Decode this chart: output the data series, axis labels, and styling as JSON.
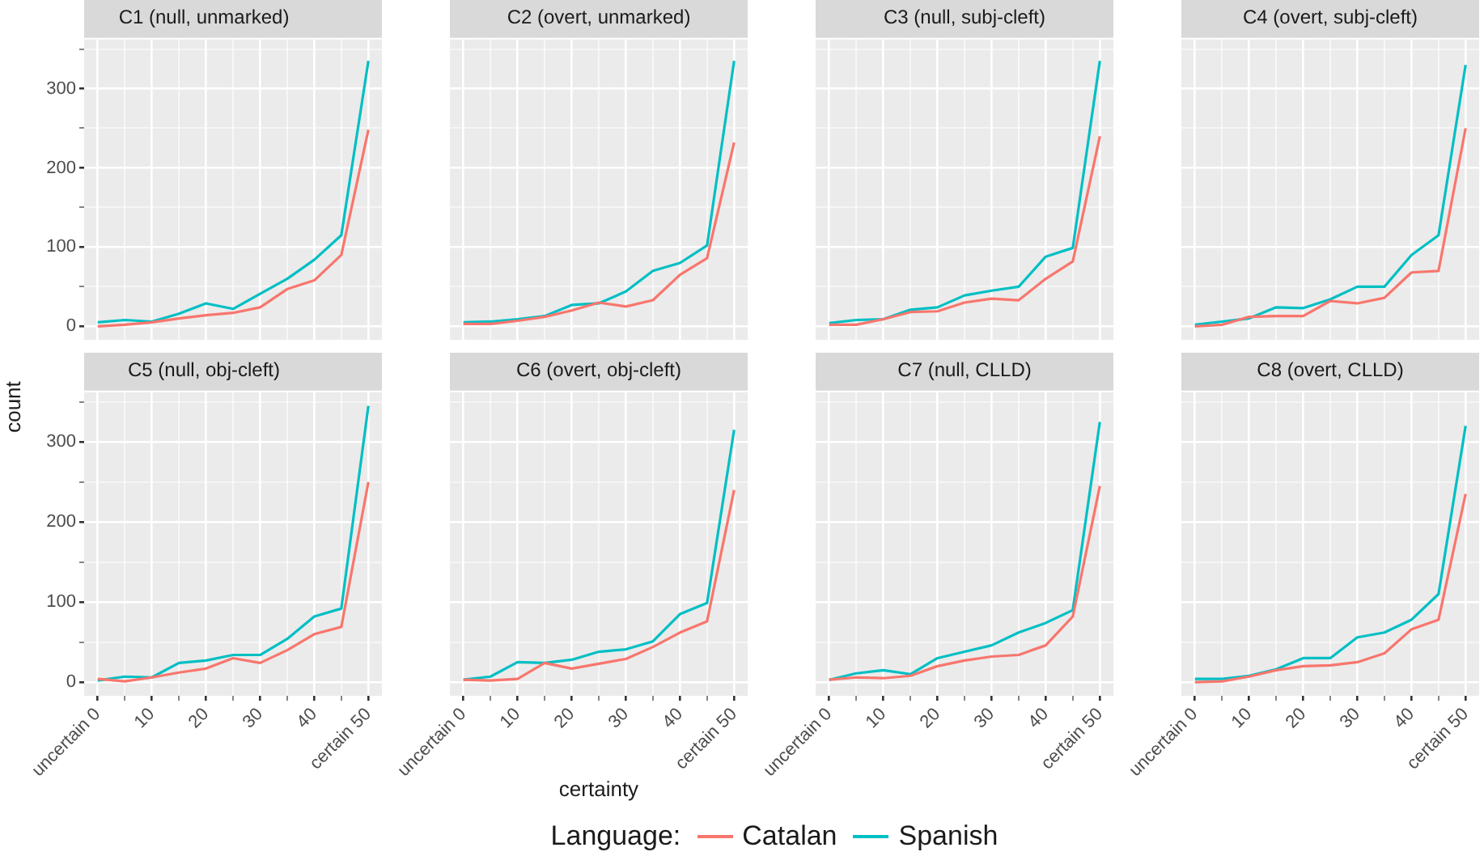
{
  "chart_data": [
    {
      "type": "line",
      "title": "C1 (null, unmarked)",
      "ylabel": "count",
      "legend_title": "Language:",
      "legend": "bottom",
      "tick_labels": "y",
      "grid": true,
      "x": [
        0,
        5,
        10,
        15,
        20,
        25,
        30,
        35,
        40,
        45,
        50
      ],
      "xlim": [
        -2.5,
        52.5
      ],
      "xticks": [
        0,
        {
          "value": 5,
          "label": null
        },
        10,
        {
          "value": 15,
          "label": null
        },
        20,
        {
          "value": 25,
          "label": null
        },
        30,
        {
          "value": 35,
          "label": null
        },
        40,
        {
          "value": 45,
          "label": null
        },
        50
      ],
      "ylim": [
        -17,
        362
      ],
      "yticks": [
        0,
        {
          "value": 50,
          "label": null
        },
        100,
        {
          "value": 150,
          "label": null
        },
        200,
        {
          "value": 250,
          "label": null
        },
        300,
        {
          "value": 350,
          "label": null
        }
      ],
      "series": [
        {
          "name": "Catalan",
          "color": "#f8766d",
          "values": [
            0,
            2,
            5,
            10,
            14,
            17,
            24,
            47,
            58,
            90,
            248
          ]
        },
        {
          "name": "Spanish",
          "color": "#00bfc4",
          "values": [
            5,
            8,
            6,
            16,
            29,
            22,
            41,
            60,
            84,
            115,
            335
          ]
        }
      ]
    },
    {
      "type": "line",
      "title": "C2 (overt, unmarked)",
      "tick_labels": false,
      "grid": true,
      "x": [
        0,
        5,
        10,
        15,
        20,
        25,
        30,
        35,
        40,
        45,
        50
      ],
      "xlim": [
        -2.5,
        52.5
      ],
      "xticks": [
        0,
        {
          "value": 5,
          "label": null
        },
        10,
        {
          "value": 15,
          "label": null
        },
        20,
        {
          "value": 25,
          "label": null
        },
        30,
        {
          "value": 35,
          "label": null
        },
        40,
        {
          "value": 45,
          "label": null
        },
        50
      ],
      "ylim": [
        -17,
        362
      ],
      "yticks": [
        0,
        {
          "value": 50,
          "label": null
        },
        100,
        {
          "value": 150,
          "label": null
        },
        200,
        {
          "value": 250,
          "label": null
        },
        300,
        {
          "value": 350,
          "label": null
        }
      ],
      "series": [
        {
          "color": "#f8766d",
          "values": [
            3,
            3,
            7,
            12,
            20,
            30,
            25,
            33,
            65,
            86,
            232
          ]
        },
        {
          "color": "#00bfc4",
          "values": [
            5,
            6,
            9,
            13,
            27,
            29,
            44,
            70,
            80,
            102,
            335
          ]
        }
      ]
    },
    {
      "type": "line",
      "title": "C3 (null, subj-cleft)",
      "tick_labels": false,
      "grid": true,
      "x": [
        0,
        5,
        10,
        15,
        20,
        25,
        30,
        35,
        40,
        45,
        50
      ],
      "xlim": [
        -2.5,
        52.5
      ],
      "xticks": [
        0,
        {
          "value": 5,
          "label": null
        },
        10,
        {
          "value": 15,
          "label": null
        },
        20,
        {
          "value": 25,
          "label": null
        },
        30,
        {
          "value": 35,
          "label": null
        },
        40,
        {
          "value": 45,
          "label": null
        },
        50
      ],
      "ylim": [
        -17,
        362
      ],
      "yticks": [
        0,
        {
          "value": 50,
          "label": null
        },
        100,
        {
          "value": 150,
          "label": null
        },
        200,
        {
          "value": 250,
          "label": null
        },
        300,
        {
          "value": 350,
          "label": null
        }
      ],
      "series": [
        {
          "color": "#f8766d",
          "values": [
            2,
            2,
            9,
            18,
            19,
            30,
            35,
            33,
            60,
            82,
            240
          ]
        },
        {
          "color": "#00bfc4",
          "values": [
            4,
            8,
            9,
            21,
            24,
            39,
            45,
            50,
            88,
            99,
            335
          ]
        }
      ]
    },
    {
      "type": "line",
      "title": "C4 (overt, subj-cleft)",
      "tick_labels": false,
      "grid": true,
      "x": [
        0,
        5,
        10,
        15,
        20,
        25,
        30,
        35,
        40,
        45,
        50
      ],
      "xlim": [
        -2.5,
        52.5
      ],
      "xticks": [
        0,
        {
          "value": 5,
          "label": null
        },
        10,
        {
          "value": 15,
          "label": null
        },
        20,
        {
          "value": 25,
          "label": null
        },
        30,
        {
          "value": 35,
          "label": null
        },
        40,
        {
          "value": 45,
          "label": null
        },
        50
      ],
      "ylim": [
        -17,
        362
      ],
      "yticks": [
        0,
        {
          "value": 50,
          "label": null
        },
        100,
        {
          "value": 150,
          "label": null
        },
        200,
        {
          "value": 250,
          "label": null
        },
        300,
        {
          "value": 350,
          "label": null
        }
      ],
      "series": [
        {
          "color": "#f8766d",
          "values": [
            0,
            2,
            12,
            13,
            13,
            32,
            29,
            36,
            68,
            70,
            250
          ]
        },
        {
          "color": "#00bfc4",
          "values": [
            2,
            6,
            10,
            24,
            23,
            34,
            50,
            50,
            90,
            115,
            330
          ]
        }
      ]
    },
    {
      "type": "line",
      "title": "C5 (null, obj-cleft)",
      "grid": true,
      "x": [
        0,
        5,
        10,
        15,
        20,
        25,
        30,
        35,
        40,
        45,
        50
      ],
      "xlim": [
        -2.5,
        52.5
      ],
      "xticks": [
        {
          "value": 0,
          "label": "uncertain 0"
        },
        {
          "value": 5,
          "label": null
        },
        10,
        {
          "value": 15,
          "label": null
        },
        20,
        {
          "value": 25,
          "label": null
        },
        30,
        {
          "value": 35,
          "label": null
        },
        40,
        {
          "value": 45,
          "label": null
        },
        {
          "value": 50,
          "label": "certain 50"
        }
      ],
      "ylim": [
        -17,
        362
      ],
      "yticks": [
        0,
        {
          "value": 50,
          "label": null
        },
        100,
        {
          "value": 150,
          "label": null
        },
        200,
        {
          "value": 250,
          "label": null
        },
        300,
        {
          "value": 350,
          "label": null
        }
      ],
      "series": [
        {
          "color": "#f8766d",
          "values": [
            4,
            1,
            6,
            12,
            17,
            30,
            24,
            40,
            60,
            69,
            250
          ]
        },
        {
          "color": "#00bfc4",
          "values": [
            2,
            7,
            6,
            24,
            27,
            34,
            34,
            54,
            82,
            92,
            345
          ]
        }
      ]
    },
    {
      "type": "line",
      "title": "C6 (overt, obj-cleft)",
      "xlabel": "certainty",
      "tick_labels": "x",
      "grid": true,
      "x": [
        0,
        5,
        10,
        15,
        20,
        25,
        30,
        35,
        40,
        45,
        50
      ],
      "xlim": [
        -2.5,
        52.5
      ],
      "xticks": [
        {
          "value": 0,
          "label": "uncertain 0"
        },
        {
          "value": 5,
          "label": null
        },
        10,
        {
          "value": 15,
          "label": null
        },
        20,
        {
          "value": 25,
          "label": null
        },
        30,
        {
          "value": 35,
          "label": null
        },
        40,
        {
          "value": 45,
          "label": null
        },
        {
          "value": 50,
          "label": "certain 50"
        }
      ],
      "ylim": [
        -17,
        362
      ],
      "yticks": [
        0,
        {
          "value": 50,
          "label": null
        },
        100,
        {
          "value": 150,
          "label": null
        },
        200,
        {
          "value": 250,
          "label": null
        },
        300,
        {
          "value": 350,
          "label": null
        }
      ],
      "series": [
        {
          "color": "#f8766d",
          "values": [
            3,
            2,
            4,
            24,
            17,
            23,
            29,
            44,
            62,
            76,
            240
          ]
        },
        {
          "color": "#00bfc4",
          "values": [
            3,
            7,
            25,
            24,
            28,
            38,
            41,
            51,
            85,
            99,
            315
          ]
        }
      ]
    },
    {
      "type": "line",
      "title": "C7 (null, CLLD)",
      "tick_labels": "x",
      "grid": true,
      "x": [
        0,
        5,
        10,
        15,
        20,
        25,
        30,
        35,
        40,
        45,
        50
      ],
      "xlim": [
        -2.5,
        52.5
      ],
      "xticks": [
        {
          "value": 0,
          "label": "uncertain 0"
        },
        {
          "value": 5,
          "label": null
        },
        10,
        {
          "value": 15,
          "label": null
        },
        20,
        {
          "value": 25,
          "label": null
        },
        30,
        {
          "value": 35,
          "label": null
        },
        40,
        {
          "value": 45,
          "label": null
        },
        {
          "value": 50,
          "label": "certain 50"
        }
      ],
      "ylim": [
        -17,
        362
      ],
      "yticks": [
        0,
        {
          "value": 50,
          "label": null
        },
        100,
        {
          "value": 150,
          "label": null
        },
        200,
        {
          "value": 250,
          "label": null
        },
        300,
        {
          "value": 350,
          "label": null
        }
      ],
      "series": [
        {
          "color": "#f8766d",
          "values": [
            3,
            6,
            5,
            8,
            20,
            27,
            32,
            34,
            46,
            82,
            245
          ]
        },
        {
          "color": "#00bfc4",
          "values": [
            3,
            11,
            15,
            10,
            30,
            38,
            46,
            62,
            74,
            90,
            325
          ]
        }
      ]
    },
    {
      "type": "line",
      "title": "C8 (overt, CLLD)",
      "tick_labels": "x",
      "grid": true,
      "x": [
        0,
        5,
        10,
        15,
        20,
        25,
        30,
        35,
        40,
        45,
        50
      ],
      "xlim": [
        -2.5,
        52.5
      ],
      "xticks": [
        {
          "value": 0,
          "label": "uncertain 0"
        },
        {
          "value": 5,
          "label": null
        },
        10,
        {
          "value": 15,
          "label": null
        },
        20,
        {
          "value": 25,
          "label": null
        },
        30,
        {
          "value": 35,
          "label": null
        },
        40,
        {
          "value": 45,
          "label": null
        },
        {
          "value": 50,
          "label": "certain 50"
        }
      ],
      "ylim": [
        -17,
        362
      ],
      "yticks": [
        0,
        {
          "value": 50,
          "label": null
        },
        100,
        {
          "value": 150,
          "label": null
        },
        200,
        {
          "value": 250,
          "label": null
        },
        300,
        {
          "value": 350,
          "label": null
        }
      ],
      "series": [
        {
          "color": "#f8766d",
          "values": [
            0,
            1,
            7,
            15,
            20,
            21,
            25,
            36,
            66,
            78,
            235
          ]
        },
        {
          "color": "#00bfc4",
          "values": [
            4,
            4,
            8,
            16,
            30,
            30,
            56,
            62,
            78,
            110,
            320
          ]
        }
      ]
    }
  ]
}
